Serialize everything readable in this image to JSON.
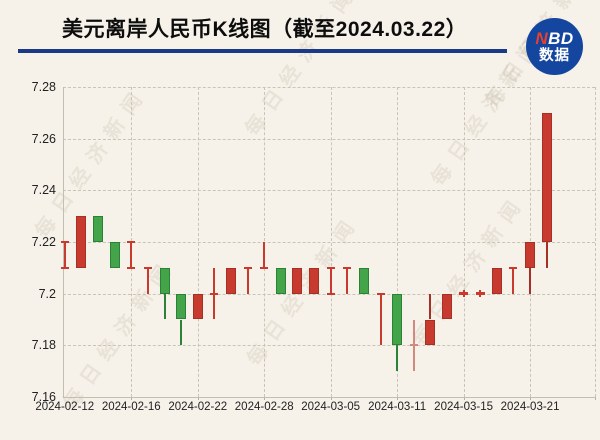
{
  "header": {
    "title": "美元离岸人民币K线图（截至2024.03.22）",
    "logo": {
      "n": "N",
      "bd": "BD",
      "caption": "数据",
      "bg_color": "#1446a0",
      "n_color": "#e8402a"
    }
  },
  "watermark": {
    "text": "每日经济新闻"
  },
  "colors": {
    "background": "#f6f2ea",
    "underline": "#1b3a85",
    "up": "#c83a2e",
    "up_border": "#a53026",
    "down": "#44a449",
    "down_border": "#2b8136",
    "pale": "#d28a80",
    "grid": "#c9c4b8",
    "axis": "#c2beb2",
    "label_text": "#222222"
  },
  "chart_data": {
    "type": "candlestick",
    "title": "美元离岸人民币K线图（截至2024.03.22）",
    "xlabel": "",
    "ylabel": "",
    "ylim": [
      7.16,
      7.28
    ],
    "grid": true,
    "ytick_values": [
      7.28,
      7.26,
      7.24,
      7.22,
      7.2,
      7.18,
      7.16
    ],
    "ytick_labels": [
      "7.28",
      "7.26",
      "7.24",
      "7.22",
      "7.2",
      "7.18",
      "7.16"
    ],
    "xtick_labels": [
      "2024-02-12",
      "2024-02-16",
      "2024-02-22",
      "2024-02-28",
      "2024-03-05",
      "2024-03-11",
      "2024-03-15",
      "2024-03-21"
    ],
    "xtick_indices": [
      0,
      4,
      8,
      12,
      16,
      20,
      24,
      28
    ],
    "up_color": "#c83a2e",
    "down_color": "#44a449",
    "candles": [
      {
        "date": "2024-02-12",
        "style": "thin",
        "color": "red",
        "high": 7.22,
        "low": 7.21,
        "ticks": [
          7.22,
          7.21
        ]
      },
      {
        "date": "2024-02-13",
        "style": "body",
        "color": "red",
        "open": 7.21,
        "close": 7.23,
        "high": 7.23,
        "low": 7.21
      },
      {
        "date": "2024-02-14",
        "style": "body",
        "color": "green",
        "open": 7.23,
        "close": 7.22,
        "high": 7.23,
        "low": 7.22
      },
      {
        "date": "2024-02-15",
        "style": "body",
        "color": "green",
        "open": 7.22,
        "close": 7.21,
        "high": 7.22,
        "low": 7.21
      },
      {
        "date": "2024-02-16",
        "style": "thin",
        "color": "red",
        "high": 7.22,
        "low": 7.21,
        "ticks": [
          7.22,
          7.21
        ]
      },
      {
        "date": "2024-02-19",
        "style": "thin",
        "color": "red",
        "high": 7.21,
        "low": 7.2,
        "ticks": [
          7.21
        ]
      },
      {
        "date": "2024-02-20",
        "style": "body",
        "color": "green",
        "open": 7.21,
        "close": 7.2,
        "high": 7.21,
        "low": 7.19
      },
      {
        "date": "2024-02-21",
        "style": "body",
        "color": "green",
        "open": 7.2,
        "close": 7.19,
        "high": 7.2,
        "low": 7.18
      },
      {
        "date": "2024-02-22",
        "style": "body",
        "color": "red",
        "open": 7.19,
        "close": 7.2,
        "high": 7.2,
        "low": 7.19
      },
      {
        "date": "2024-02-23",
        "style": "thin",
        "color": "red",
        "high": 7.21,
        "low": 7.19,
        "ticks": [
          7.2
        ]
      },
      {
        "date": "2024-02-26",
        "style": "body",
        "color": "red",
        "open": 7.2,
        "close": 7.21,
        "high": 7.21,
        "low": 7.2
      },
      {
        "date": "2024-02-27",
        "style": "thin",
        "color": "red",
        "high": 7.21,
        "low": 7.2,
        "ticks": [
          7.21
        ]
      },
      {
        "date": "2024-02-28",
        "style": "thin",
        "color": "red",
        "high": 7.22,
        "low": 7.21,
        "ticks": [
          7.21
        ]
      },
      {
        "date": "2024-02-29",
        "style": "body",
        "color": "green",
        "open": 7.21,
        "close": 7.2,
        "high": 7.21,
        "low": 7.2
      },
      {
        "date": "2024-03-01",
        "style": "body",
        "color": "red",
        "open": 7.2,
        "close": 7.21,
        "high": 7.21,
        "low": 7.2
      },
      {
        "date": "2024-03-04",
        "style": "body",
        "color": "red",
        "open": 7.2,
        "close": 7.21,
        "high": 7.21,
        "low": 7.2
      },
      {
        "date": "2024-03-05",
        "style": "thin",
        "color": "red",
        "high": 7.21,
        "low": 7.2,
        "ticks": [
          7.21,
          7.2
        ]
      },
      {
        "date": "2024-03-06",
        "style": "thin",
        "color": "red",
        "high": 7.21,
        "low": 7.2,
        "ticks": [
          7.21
        ]
      },
      {
        "date": "2024-03-07",
        "style": "body",
        "color": "green",
        "open": 7.21,
        "close": 7.2,
        "high": 7.21,
        "low": 7.2
      },
      {
        "date": "2024-03-08",
        "style": "thin",
        "color": "red",
        "high": 7.2,
        "low": 7.18,
        "ticks": [
          7.2
        ]
      },
      {
        "date": "2024-03-11",
        "style": "body",
        "color": "green",
        "open": 7.2,
        "close": 7.18,
        "high": 7.2,
        "low": 7.17
      },
      {
        "date": "2024-03-12",
        "style": "thin",
        "color": "pink",
        "high": 7.19,
        "low": 7.17,
        "ticks": [
          7.18
        ]
      },
      {
        "date": "2024-03-13",
        "style": "body",
        "color": "red",
        "open": 7.18,
        "close": 7.19,
        "high": 7.2,
        "low": 7.18
      },
      {
        "date": "2024-03-14",
        "style": "body",
        "color": "red",
        "open": 7.19,
        "close": 7.2,
        "high": 7.2,
        "low": 7.19
      },
      {
        "date": "2024-03-15",
        "style": "dash",
        "color": "red",
        "price": 7.2
      },
      {
        "date": "2024-03-18",
        "style": "dash",
        "color": "red",
        "price": 7.2
      },
      {
        "date": "2024-03-19",
        "style": "body",
        "color": "red",
        "open": 7.2,
        "close": 7.21,
        "high": 7.21,
        "low": 7.2
      },
      {
        "date": "2024-03-20",
        "style": "thin",
        "color": "red",
        "high": 7.21,
        "low": 7.2,
        "ticks": [
          7.21
        ]
      },
      {
        "date": "2024-03-21",
        "style": "body",
        "color": "red",
        "open": 7.21,
        "close": 7.22,
        "high": 7.22,
        "low": 7.2
      },
      {
        "date": "2024-03-22",
        "style": "body",
        "color": "red",
        "open": 7.22,
        "close": 7.27,
        "high": 7.27,
        "low": 7.21
      }
    ]
  }
}
